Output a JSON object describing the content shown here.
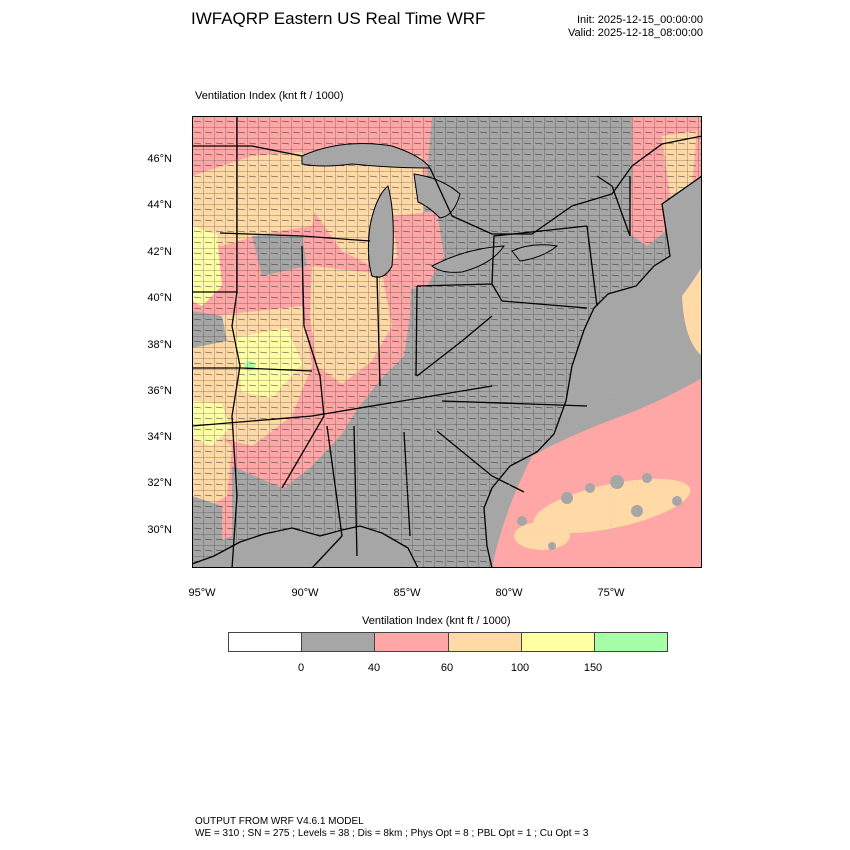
{
  "header": {
    "title": "IWFAQRP Eastern US Real Time WRF",
    "init": "Init: 2025-12-15_00:00:00",
    "valid": "Valid: 2025-12-18_08:00:00"
  },
  "map": {
    "variable_label": "Ventilation Index   (knt ft / 1000)",
    "lat_labels": [
      "46°N",
      "44°N",
      "42°N",
      "40°N",
      "38°N",
      "36°N",
      "34°N",
      "32°N",
      "30°N"
    ],
    "lon_labels": [
      "95°W",
      "90°W",
      "85°W",
      "80°W",
      "75°W"
    ]
  },
  "colorbar": {
    "title": "Ventilation Index  (knt ft / 1000)",
    "ticks": [
      "0",
      "40",
      "60",
      "100",
      "150"
    ],
    "colors": [
      "#ffffff",
      "#a6a6a6",
      "#ffa6a6",
      "#ffd9a6",
      "#ffffa6",
      "#a6ffa6"
    ]
  },
  "footer": {
    "line1": "OUTPUT FROM WRF V4.6.1 MODEL",
    "line2": "WE = 310 ; SN = 275 ; Levels = 38 ; Dis = 8km ; Phys Opt = 8 ; PBL Opt = 1 ; Cu Opt = 3"
  }
}
